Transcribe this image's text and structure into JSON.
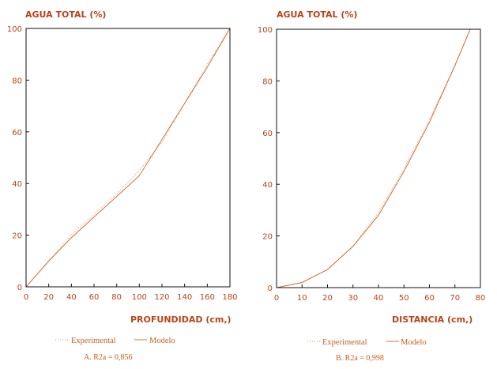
{
  "chart_data": [
    {
      "type": "line",
      "title": "AGUA TOTAL (%)",
      "xlabel": "PROFUNDIDAD (cm,)",
      "xlim": [
        0,
        180
      ],
      "ylim": [
        0,
        100
      ],
      "xticks": [
        "0",
        "20",
        "40",
        "60",
        "80",
        "100",
        "120",
        "140",
        "160",
        "180"
      ],
      "yticks": [
        "0",
        "20",
        "40",
        "60",
        "80",
        "100"
      ],
      "legend": {
        "experimental": "Experimental",
        "modelo": "Modelo"
      },
      "caption": "A.  R2a = 0,856",
      "colors": {
        "experimental": "#e8904a",
        "modelo": "#c8501a"
      },
      "series": [
        {
          "name": "Experimental",
          "style": "dotted",
          "x": [
            0,
            20,
            40,
            60,
            80,
            100,
            120,
            140,
            160,
            180
          ],
          "values": [
            0,
            10,
            20,
            28,
            36,
            45,
            56,
            71,
            86,
            100
          ]
        },
        {
          "name": "Modelo",
          "style": "solid",
          "x": [
            0,
            20,
            40,
            60,
            80,
            100,
            120,
            140,
            160,
            180
          ],
          "values": [
            0,
            10,
            19,
            27,
            35,
            43,
            57,
            71,
            85,
            100
          ]
        }
      ]
    },
    {
      "type": "line",
      "title": "AGUA TOTAL (%)",
      "xlabel": "DISTANCIA (cm,)",
      "xlim": [
        0,
        80
      ],
      "ylim": [
        0,
        100
      ],
      "xticks": [
        "0",
        "10",
        "20",
        "30",
        "40",
        "50",
        "60",
        "70",
        "80"
      ],
      "yticks": [
        "0",
        "20",
        "40",
        "60",
        "80",
        "100"
      ],
      "legend": {
        "experimental": "Experimental",
        "modelo": "Modelo"
      },
      "caption": "B.  R2a = 0,998",
      "colors": {
        "experimental": "#e8904a",
        "modelo": "#c8501a"
      },
      "series": [
        {
          "name": "Experimental",
          "style": "dotted",
          "x": [
            0,
            10,
            20,
            30,
            40,
            50,
            60,
            70,
            76
          ],
          "values": [
            0,
            2,
            7,
            16,
            29,
            46,
            65,
            86,
            100
          ]
        },
        {
          "name": "Modelo",
          "style": "solid",
          "x": [
            0,
            10,
            20,
            30,
            40,
            50,
            60,
            70,
            76
          ],
          "values": [
            0,
            2,
            7,
            16,
            28,
            45,
            64,
            86,
            100
          ]
        }
      ]
    }
  ]
}
